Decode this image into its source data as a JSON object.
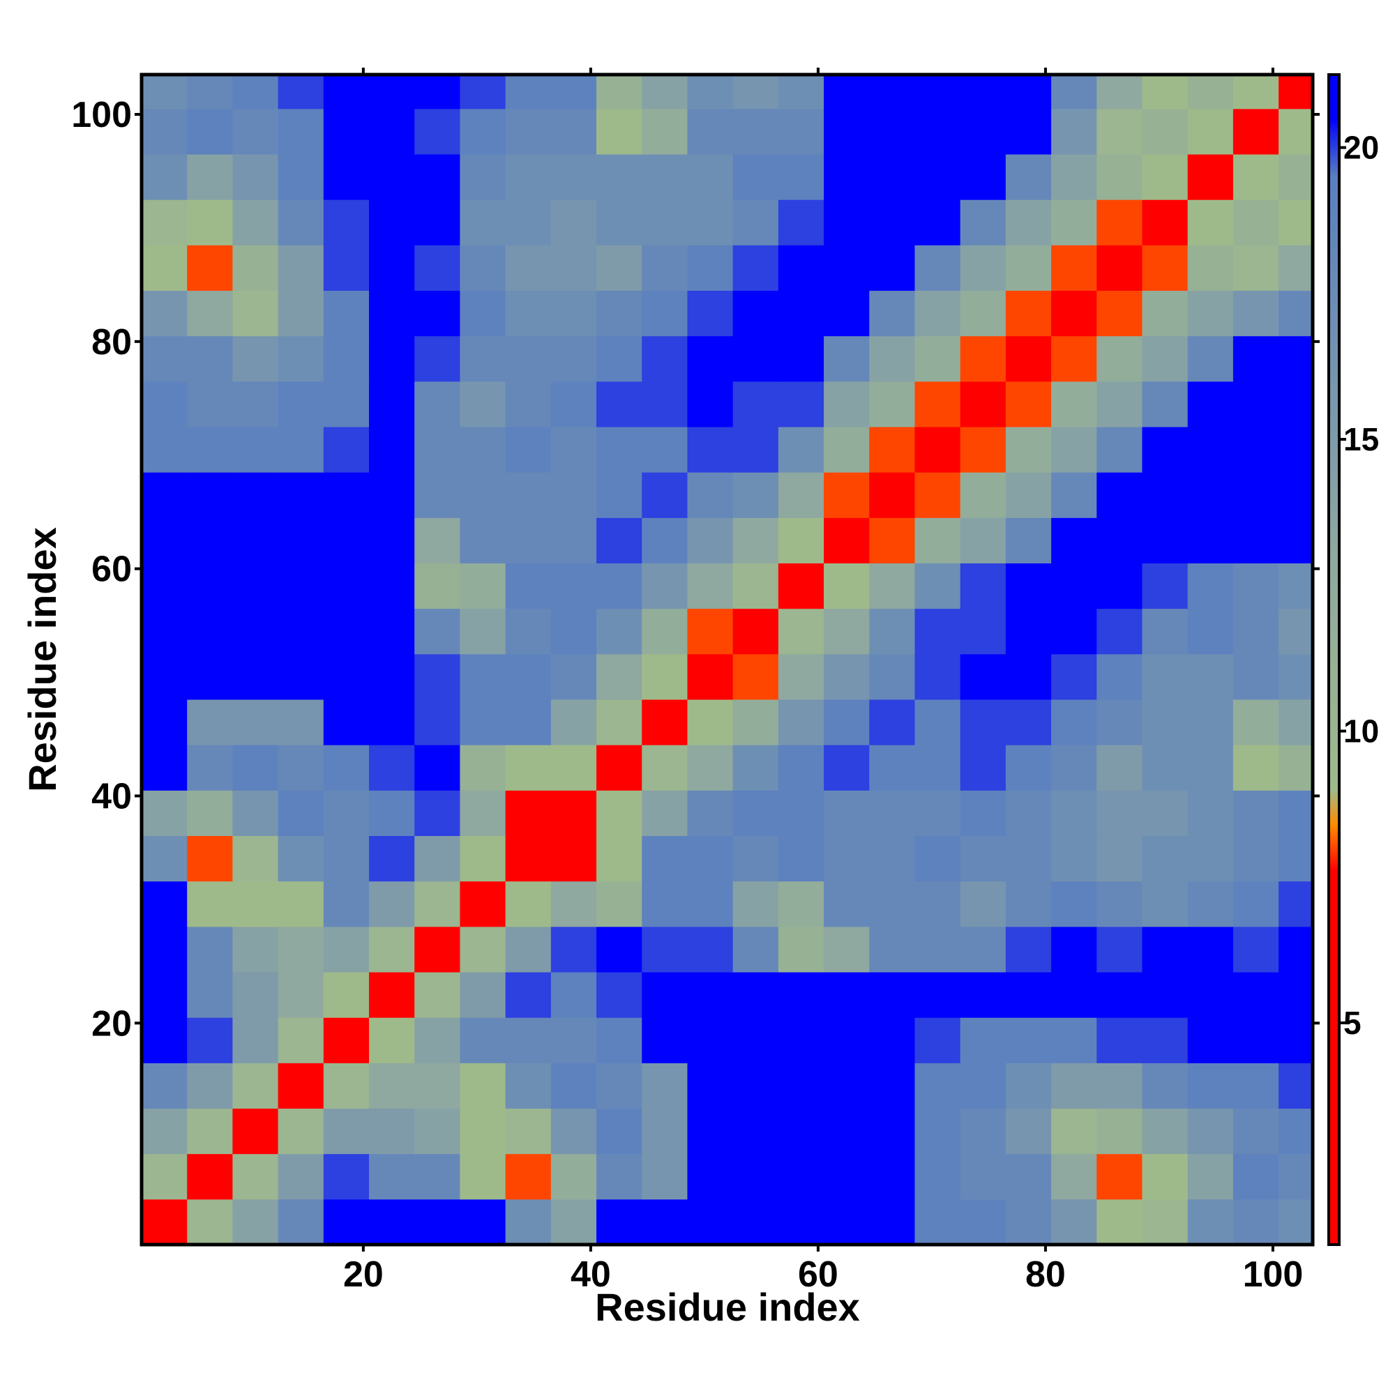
{
  "chart_data": {
    "type": "heatmap",
    "x_label": "Residue index",
    "y_label": "Residue index",
    "xlim": [
      0.5,
      103.5
    ],
    "ylim": [
      0.5,
      103.5
    ],
    "xticks": [
      20,
      40,
      60,
      80,
      100
    ],
    "yticks": [
      20,
      40,
      60,
      80,
      100
    ],
    "xbins": [
      0.5,
      4.5,
      8.5,
      12.5,
      16.5,
      20.5,
      24.5,
      28.5,
      32.5,
      36.5,
      40.5,
      44.5,
      48.5,
      52.5,
      56.5,
      60.5,
      64.5,
      68.5,
      72.5,
      76.5,
      80.5,
      84.5,
      88.5,
      92.5,
      96.5,
      100.5,
      103.5
    ],
    "ybins": [
      0.5,
      4.5,
      8.5,
      12.5,
      16.5,
      20.5,
      24.5,
      28.5,
      32.5,
      36.5,
      40.5,
      44.5,
      48.5,
      52.5,
      56.5,
      60.5,
      64.5,
      68.5,
      72.5,
      76.5,
      80.5,
      84.5,
      88.5,
      92.5,
      96.5,
      100.5,
      103.5
    ],
    "z": [
      [
        5,
        10,
        14,
        18,
        24,
        24,
        24,
        24,
        17,
        14,
        24,
        24,
        21,
        21,
        21,
        21,
        24,
        19,
        19,
        18,
        16,
        9,
        10,
        17,
        18,
        17
      ],
      [
        10,
        5,
        10,
        15,
        20,
        18,
        18,
        9,
        8,
        12,
        18,
        16,
        21,
        21,
        21,
        21,
        24,
        19,
        18,
        18,
        13,
        8,
        9,
        14,
        19,
        18
      ],
      [
        14,
        10,
        5,
        10,
        15,
        15,
        14,
        9,
        10,
        16,
        19,
        16,
        21,
        21,
        24,
        21,
        24,
        19,
        18,
        16,
        10,
        11,
        14,
        16,
        18,
        19
      ],
      [
        18,
        15,
        10,
        5,
        10,
        13,
        13,
        9,
        17,
        19,
        18,
        16,
        21,
        24,
        21,
        24,
        24,
        19,
        19,
        17,
        15,
        15,
        18,
        19,
        19,
        20
      ],
      [
        24,
        20,
        15,
        10,
        5,
        9,
        14,
        18,
        18,
        18,
        19,
        24,
        24,
        24,
        24,
        24,
        24,
        20,
        19,
        19,
        19,
        20,
        20,
        24,
        22,
        22
      ],
      [
        24,
        18,
        15,
        13,
        9,
        5,
        10,
        15,
        20,
        19,
        20,
        24,
        24,
        24,
        22,
        22,
        24,
        24,
        24,
        24,
        24,
        24,
        24,
        24,
        24,
        24
      ],
      [
        24,
        18,
        14,
        13,
        14,
        10,
        5,
        10,
        15,
        20,
        22,
        20,
        20,
        18,
        11,
        13,
        18,
        18,
        18,
        20,
        21,
        20,
        22,
        21,
        20,
        22
      ],
      [
        24,
        9,
        9,
        9,
        18,
        15,
        10,
        5,
        9,
        13,
        11,
        19,
        19,
        14,
        12,
        18,
        18,
        18,
        16,
        18,
        19,
        18,
        17,
        18,
        19,
        20
      ],
      [
        17,
        8,
        10,
        17,
        18,
        20,
        15,
        9,
        5,
        6,
        9,
        19,
        19,
        18,
        19,
        18,
        18,
        19,
        18,
        18,
        17,
        16,
        17,
        17,
        18,
        19
      ],
      [
        14,
        12,
        16,
        19,
        18,
        19,
        20,
        13,
        6,
        5,
        9,
        14,
        18,
        19,
        19,
        18,
        18,
        18,
        19,
        18,
        17,
        16,
        16,
        17,
        18,
        19
      ],
      [
        24,
        18,
        19,
        18,
        19,
        20,
        22,
        11,
        9,
        9,
        5,
        10,
        13,
        17,
        19,
        20,
        19,
        19,
        20,
        19,
        18,
        15,
        17,
        17,
        9,
        11
      ],
      [
        24,
        16,
        16,
        16,
        24,
        24,
        20,
        19,
        19,
        14,
        10,
        5,
        9,
        12,
        16,
        19,
        20,
        19,
        20,
        20,
        19,
        18,
        17,
        17,
        12,
        14
      ],
      [
        21,
        21,
        21,
        21,
        24,
        24,
        20,
        19,
        19,
        18,
        13,
        9,
        5,
        8,
        13,
        16,
        18,
        20,
        21,
        22,
        20,
        19,
        17,
        17,
        18,
        17
      ],
      [
        21,
        21,
        21,
        24,
        24,
        24,
        18,
        14,
        18,
        19,
        17,
        12,
        8,
        5,
        10,
        13,
        17,
        20,
        20,
        21,
        22,
        20,
        18,
        19,
        18,
        16
      ],
      [
        21,
        21,
        24,
        21,
        24,
        22,
        11,
        12,
        19,
        19,
        19,
        16,
        13,
        10,
        5,
        9,
        13,
        17,
        20,
        21,
        22,
        21,
        20,
        19,
        18,
        17
      ],
      [
        21,
        21,
        21,
        24,
        24,
        22,
        13,
        18,
        18,
        18,
        20,
        19,
        16,
        13,
        9,
        5,
        8,
        12,
        14,
        18,
        22,
        22,
        24,
        24,
        24,
        24
      ],
      [
        24,
        24,
        24,
        24,
        24,
        24,
        18,
        18,
        18,
        18,
        19,
        20,
        18,
        17,
        13,
        8,
        5,
        8,
        12,
        14,
        18,
        22,
        24,
        24,
        24,
        24
      ],
      [
        19,
        19,
        19,
        19,
        20,
        24,
        18,
        18,
        19,
        18,
        19,
        19,
        20,
        20,
        17,
        12,
        8,
        5,
        8,
        12,
        14,
        18,
        23,
        24,
        24,
        24
      ],
      [
        19,
        18,
        18,
        19,
        19,
        24,
        18,
        16,
        18,
        19,
        20,
        20,
        21,
        20,
        20,
        14,
        12,
        8,
        5,
        8,
        12,
        14,
        18,
        22,
        24,
        24
      ],
      [
        18,
        18,
        16,
        17,
        19,
        24,
        20,
        18,
        18,
        18,
        19,
        20,
        22,
        21,
        21,
        18,
        14,
        12,
        8,
        5,
        8,
        12,
        14,
        18,
        21,
        24
      ],
      [
        16,
        13,
        10,
        15,
        19,
        24,
        21,
        19,
        17,
        17,
        18,
        19,
        20,
        22,
        22,
        22,
        18,
        14,
        12,
        8,
        5,
        8,
        12,
        14,
        16,
        18
      ],
      [
        9,
        8,
        11,
        15,
        20,
        24,
        20,
        18,
        16,
        16,
        15,
        18,
        19,
        20,
        21,
        22,
        22,
        18,
        14,
        12,
        8,
        5,
        8,
        11,
        10,
        13
      ],
      [
        10,
        9,
        14,
        18,
        20,
        24,
        22,
        17,
        17,
        16,
        17,
        17,
        17,
        18,
        20,
        24,
        24,
        23,
        18,
        14,
        12,
        8,
        5,
        9,
        11,
        9
      ],
      [
        17,
        14,
        16,
        19,
        24,
        24,
        21,
        18,
        17,
        17,
        17,
        17,
        17,
        19,
        19,
        24,
        24,
        24,
        22,
        18,
        14,
        11,
        9,
        5,
        9,
        11
      ],
      [
        18,
        19,
        18,
        19,
        22,
        24,
        20,
        19,
        18,
        18,
        9,
        12,
        18,
        18,
        18,
        24,
        24,
        24,
        24,
        21,
        16,
        10,
        11,
        9,
        5,
        9
      ],
      [
        17,
        18,
        19,
        20,
        22,
        24,
        22,
        20,
        19,
        19,
        11,
        14,
        17,
        16,
        17,
        24,
        24,
        24,
        24,
        24,
        18,
        13,
        9,
        11,
        9,
        5
      ]
    ],
    "colorbar": {
      "zlim": [
        1.2,
        21.25
      ],
      "ticks": [
        5,
        10,
        15,
        20
      ],
      "colorscale": [
        {
          "value": 1.2,
          "color": "#ff0000"
        },
        {
          "value": 7.6,
          "color": "#ff0000"
        },
        {
          "value": 8.4,
          "color": "#ff8c00"
        },
        {
          "value": 9,
          "color": "#9fba8a"
        },
        {
          "value": 13,
          "color": "#8fa8a0"
        },
        {
          "value": 19.5,
          "color": "#5a7fc0"
        },
        {
          "value": 20.5,
          "color": "#0000ff"
        }
      ]
    }
  }
}
